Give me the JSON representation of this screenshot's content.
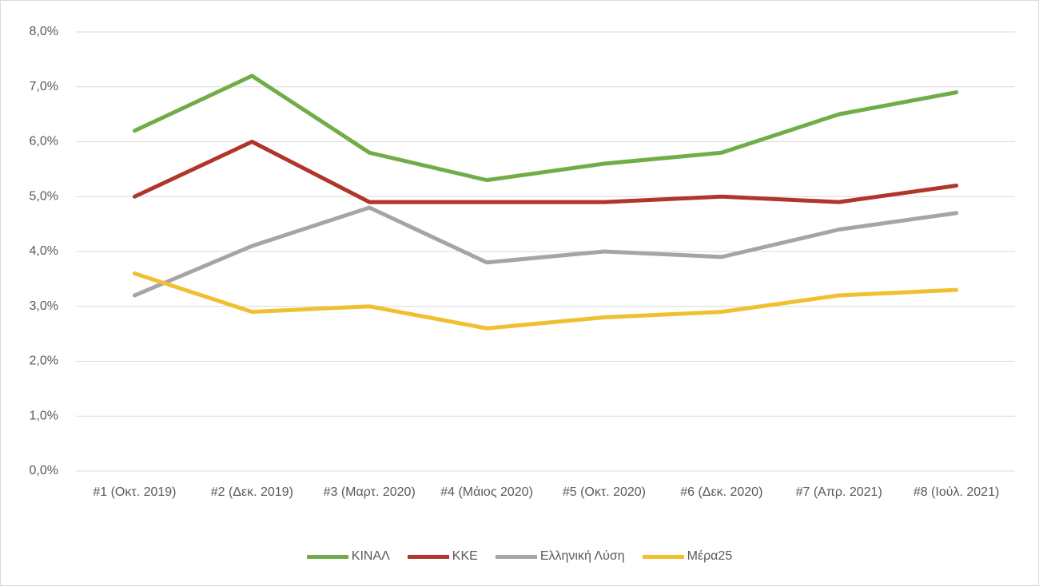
{
  "chart_data": {
    "type": "line",
    "categories": [
      "#1 (Οκτ. 2019)",
      "#2 (Δεκ. 2019)",
      "#3 (Μαρτ. 2020)",
      "#4 (Μάιος 2020)",
      "#5 (Οκτ. 2020)",
      "#6 (Δεκ. 2020)",
      "#7 (Απρ. 2021)",
      "#8 (Ιούλ. 2021)"
    ],
    "series": [
      {
        "name": "ΚΙΝΑΛ",
        "color": "#70ad47",
        "values": [
          6.2,
          7.2,
          5.8,
          5.3,
          5.6,
          5.8,
          6.5,
          6.9
        ]
      },
      {
        "name": "ΚΚΕ",
        "color": "#b0352b",
        "values": [
          5.0,
          6.0,
          4.9,
          4.9,
          4.9,
          5.0,
          4.9,
          5.2
        ]
      },
      {
        "name": "Ελληνική Λύση",
        "color": "#a5a5a5",
        "values": [
          3.2,
          4.1,
          4.8,
          3.8,
          4.0,
          3.9,
          4.4,
          4.7
        ]
      },
      {
        "name": "Μέρα25",
        "color": "#f0c030",
        "values": [
          3.6,
          2.9,
          3.0,
          2.6,
          2.8,
          2.9,
          3.2,
          3.3
        ]
      }
    ],
    "ylim": [
      0,
      8
    ],
    "yticks": [
      {
        "value": 0,
        "label": "0,0%"
      },
      {
        "value": 1,
        "label": "1,0%"
      },
      {
        "value": 2,
        "label": "2,0%"
      },
      {
        "value": 3,
        "label": "3,0%"
      },
      {
        "value": 4,
        "label": "4,0%"
      },
      {
        "value": 5,
        "label": "5,0%"
      },
      {
        "value": 6,
        "label": "6,0%"
      },
      {
        "value": 7,
        "label": "7,0%"
      },
      {
        "value": 8,
        "label": "8,0%"
      }
    ],
    "grid": true,
    "legend": "bottom"
  }
}
